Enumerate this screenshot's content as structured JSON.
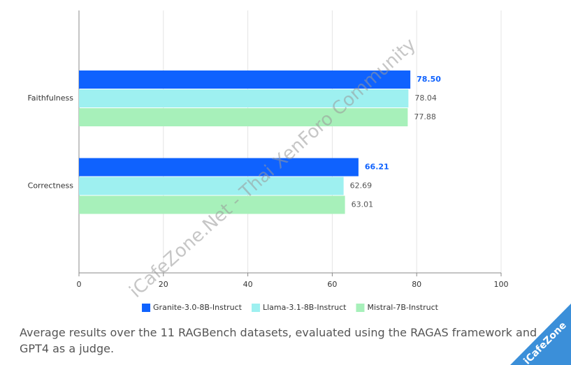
{
  "chart_data": {
    "type": "hbar",
    "categories": [
      "Faithfulness",
      "Correctness"
    ],
    "series": [
      {
        "name": "Granite-3.0-8B-Instruct",
        "color": "#0f62fe",
        "values": [
          78.5,
          66.21
        ],
        "value_labels": [
          "78.50",
          "66.21"
        ]
      },
      {
        "name": "Llama-3.1-8B-Instruct",
        "color": "#9ef0f0",
        "values": [
          78.04,
          62.69
        ]
      },
      {
        "name": "Mistral-7B-Instruct",
        "color": "#a7f0ba",
        "values": [
          77.88,
          63.01
        ]
      }
    ],
    "xlim": [
      0,
      100
    ],
    "xticks": [
      0,
      20,
      40,
      60,
      80,
      100
    ],
    "grid": true,
    "legend": "bottom"
  },
  "caption": "Average results over the 11 RAGBench datasets, evaluated using the RAGAS framework and GPT4 as a judge.",
  "watermark": "iCafeZone.Net - Thai XenForo Community",
  "badge": "iCafeZone"
}
